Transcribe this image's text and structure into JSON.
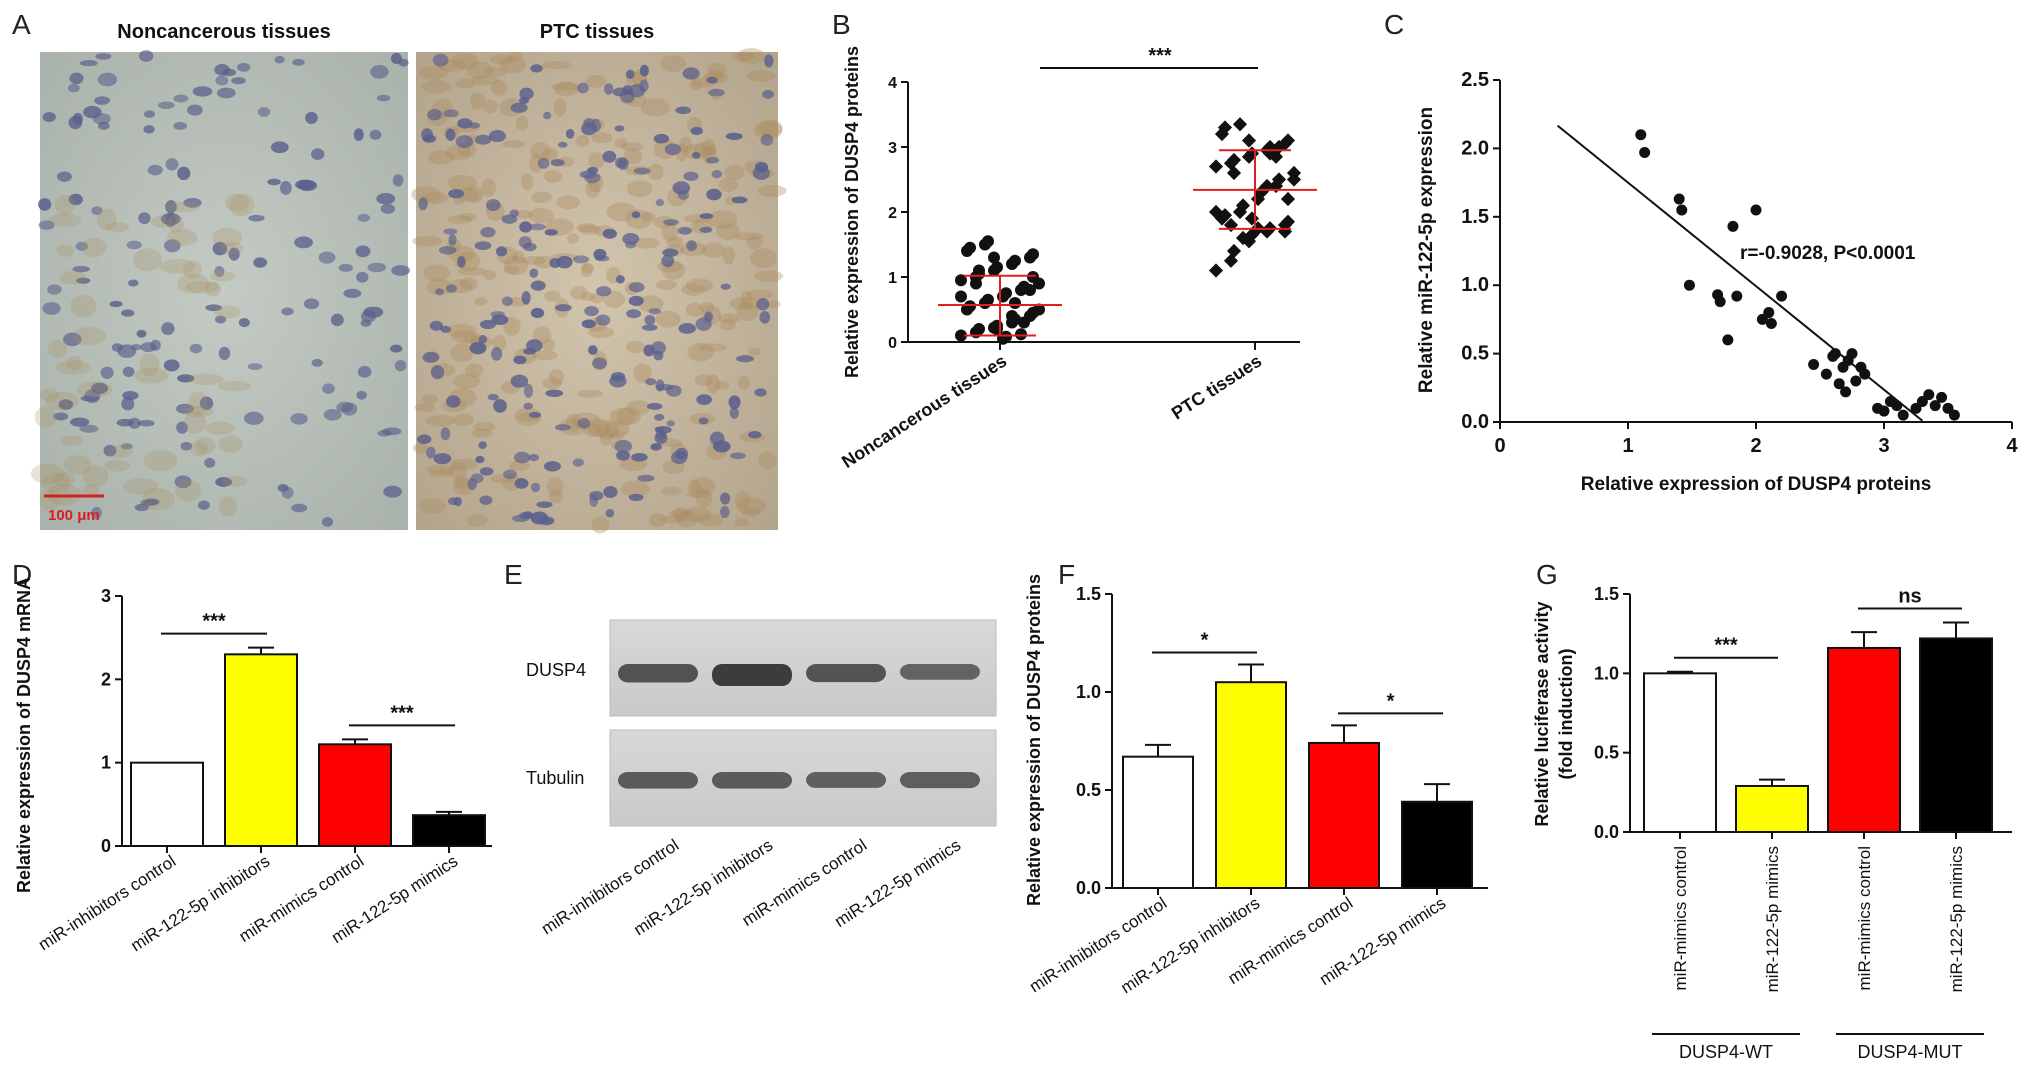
{
  "panels": {
    "A": {
      "label": "A",
      "left_title": "Noncancerous tissues",
      "right_title": "PTC tissues",
      "scale_bar": "100 μm",
      "colors": {
        "left_bg": "#b7bfb8",
        "right_bg": "#c4b8a4",
        "nucleus": "#5a5f8c",
        "stain": "#a88a5c",
        "scale": "#d42020"
      }
    },
    "E": {
      "label": "E",
      "rows": [
        "DUSP4",
        "Tubulin"
      ],
      "lanes": [
        "miR-inhibitors control",
        "miR-122-5p inhibitors",
        "miR-mimics control",
        "miR-122-5p mimics"
      ],
      "band_intensity_dusp4": [
        0.75,
        1.0,
        0.72,
        0.55
      ],
      "band_intensity_tubulin": [
        0.72,
        0.72,
        0.66,
        0.68
      ]
    }
  },
  "chart_data": [
    {
      "id": "B",
      "label": "B",
      "type": "scatter",
      "ylabel": "Relative expression of DUSP4 proteins",
      "categories": [
        "Noncancerous tissues",
        "PTC tissues"
      ],
      "ylim": [
        0,
        4
      ],
      "yticks": [
        "0",
        "1",
        "2",
        "3",
        "4"
      ],
      "significance": "***",
      "series": [
        {
          "values": [
            0.1,
            0.15,
            0.2,
            0.22,
            0.25,
            0.3,
            0.35,
            0.4,
            0.45,
            0.5,
            0.55,
            0.6,
            0.65,
            0.7,
            0.75,
            0.8,
            0.85,
            0.9,
            0.95,
            1.0,
            1.05,
            1.1,
            1.15,
            1.2,
            1.25,
            1.3,
            1.35,
            1.4,
            1.45,
            1.5,
            1.55,
            0.05,
            0.08,
            0.12,
            0.3,
            0.5,
            0.7,
            0.9,
            1.1,
            1.3,
            0.2,
            0.4,
            0.6,
            0.8,
            1.0
          ],
          "mean": 0.57,
          "sd_low": 0.1,
          "sd_high": 1.02,
          "marker": "circle"
        },
        {
          "values": [
            1.1,
            1.25,
            1.4,
            1.55,
            1.65,
            1.7,
            1.75,
            1.8,
            1.85,
            1.9,
            1.95,
            2.0,
            2.1,
            2.2,
            2.3,
            2.4,
            2.5,
            2.6,
            2.7,
            2.75,
            2.8,
            2.85,
            2.9,
            2.95,
            3.0,
            3.05,
            3.1,
            3.2,
            3.3,
            3.35,
            1.6,
            1.75,
            2.3,
            2.85,
            3.0,
            2.5,
            2.0,
            1.8,
            2.6,
            3.1,
            1.9,
            2.4,
            2.9,
            1.7,
            2.2
          ],
          "mean": 2.34,
          "sd_low": 1.74,
          "sd_high": 2.95,
          "marker": "diamond"
        }
      ]
    },
    {
      "id": "C",
      "label": "C",
      "type": "scatter",
      "xlabel": "Relative expression of DUSP4 proteins",
      "ylabel": "Relative miR-122-5p expression",
      "xlim": [
        0,
        4
      ],
      "ylim": [
        0,
        2.5
      ],
      "xticks": [
        "0",
        "1",
        "2",
        "3",
        "4"
      ],
      "yticks": [
        "0.0",
        "0.5",
        "1.0",
        "1.5",
        "2.0",
        "2.5"
      ],
      "annotation": "r=-0.9028, P<0.0001",
      "x": [
        1.1,
        1.13,
        1.4,
        1.42,
        1.48,
        1.7,
        1.72,
        1.78,
        1.82,
        1.85,
        2.0,
        2.05,
        2.1,
        2.12,
        2.2,
        2.45,
        2.55,
        2.6,
        2.62,
        2.65,
        2.68,
        2.7,
        2.72,
        2.75,
        2.78,
        2.82,
        2.85,
        2.95,
        3.0,
        3.05,
        3.1,
        3.15,
        3.25,
        3.3,
        3.35,
        3.4,
        3.45,
        3.5,
        3.55
      ],
      "y": [
        2.1,
        1.97,
        1.63,
        1.55,
        1.0,
        0.93,
        0.88,
        0.6,
        1.43,
        0.92,
        1.55,
        0.75,
        0.8,
        0.72,
        0.92,
        0.42,
        0.35,
        0.48,
        0.5,
        0.28,
        0.4,
        0.22,
        0.45,
        0.5,
        0.3,
        0.4,
        0.35,
        0.1,
        0.08,
        0.15,
        0.12,
        0.05,
        0.1,
        0.15,
        0.2,
        0.12,
        0.18,
        0.1,
        0.05
      ],
      "fit": {
        "slope": -0.757,
        "intercept": 2.507,
        "x_range": [
          0.45,
          3.3
        ]
      }
    },
    {
      "id": "D",
      "label": "D",
      "type": "bar",
      "ylabel": "Relative expression of DUSP4 mRNA",
      "categories": [
        "miR-inhibitors control",
        "miR-122-5p inhibitors",
        "miR-mimics control",
        "miR-122-5p mimics"
      ],
      "values": [
        1.0,
        2.3,
        1.22,
        0.37
      ],
      "errors": [
        0,
        0.08,
        0.06,
        0.04
      ],
      "colors": [
        "#ffffff",
        "#ffff00",
        "#ff0000",
        "#000000"
      ],
      "ylim": [
        0,
        3
      ],
      "yticks": [
        "0",
        "1",
        "2",
        "3"
      ],
      "sig": [
        {
          "from": 0,
          "to": 1,
          "text": "***"
        },
        {
          "from": 2,
          "to": 3,
          "text": "***"
        }
      ]
    },
    {
      "id": "F",
      "label": "F",
      "type": "bar",
      "ylabel": "Relative expression of DUSP4 proteins",
      "categories": [
        "miR-inhibitors control",
        "miR-122-5p inhibitors",
        "miR-mimics control",
        "miR-122-5p mimics"
      ],
      "values": [
        0.67,
        1.05,
        0.74,
        0.44
      ],
      "errors": [
        0.06,
        0.09,
        0.09,
        0.09
      ],
      "colors": [
        "#ffffff",
        "#ffff00",
        "#ff0000",
        "#000000"
      ],
      "ylim": [
        0,
        1.5
      ],
      "yticks": [
        "0.0",
        "0.5",
        "1.0",
        "1.5"
      ],
      "sig": [
        {
          "from": 0,
          "to": 1,
          "text": "*"
        },
        {
          "from": 2,
          "to": 3,
          "text": "*"
        }
      ]
    },
    {
      "id": "G",
      "label": "G",
      "type": "bar",
      "ylabel": "Relative luciferase activity (fold induction)",
      "ylabel_lines": [
        "Relative luciferase activity",
        "(fold induction)"
      ],
      "categories": [
        "miR-mimics control",
        "miR-122-5p mimics",
        "miR-mimics control",
        "miR-122-5p mimics"
      ],
      "values": [
        1.0,
        0.29,
        1.16,
        1.22
      ],
      "errors": [
        0.01,
        0.04,
        0.1,
        0.1
      ],
      "colors": [
        "#ffffff",
        "#ffff00",
        "#ff0000",
        "#000000"
      ],
      "ylim": [
        0,
        1.5
      ],
      "yticks": [
        "0.0",
        "0.5",
        "1.0",
        "1.5"
      ],
      "sig": [
        {
          "from": 0,
          "to": 1,
          "text": "***"
        },
        {
          "from": 2,
          "to": 3,
          "text": "ns"
        }
      ],
      "groups": [
        "DUSP4-WT",
        "DUSP4-MUT"
      ]
    }
  ]
}
